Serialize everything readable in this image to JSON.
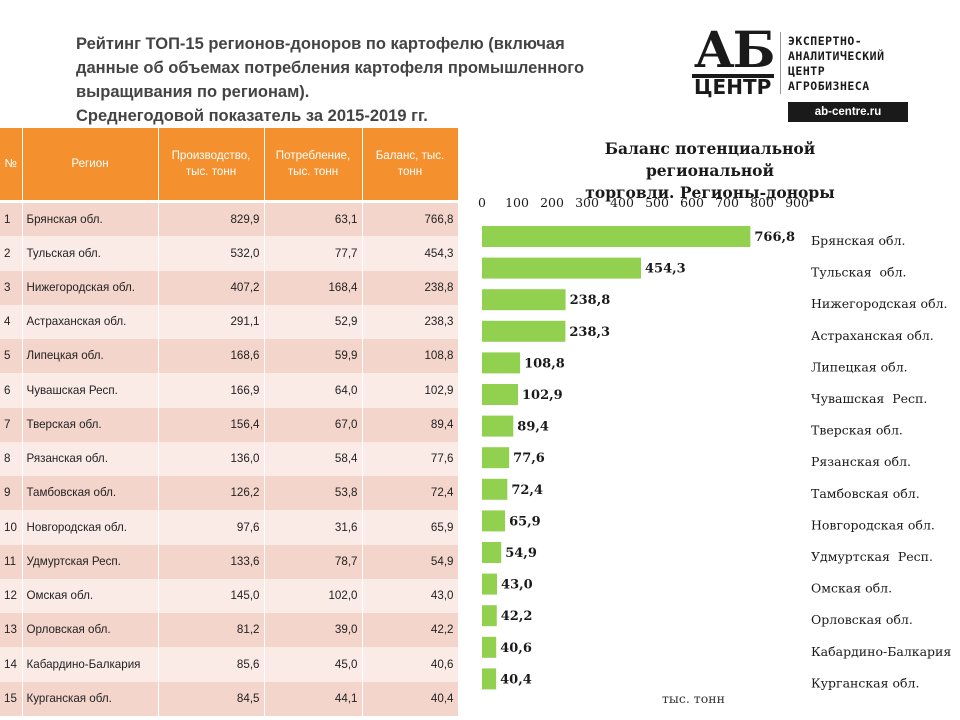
{
  "title": {
    "lines": [
      "Рейтинг ТОП-15 регионов-доноров по картофелю (включая",
      "данные об объемах потребления картофеля промышленного",
      "выращивания по регионам).",
      "Среднегодовой показатель за 2015-2019 гг."
    ]
  },
  "logo": {
    "mark_top": "АБ",
    "mark_bottom": "ЦЕНТР",
    "text_lines": [
      "ЭКСПЕРТНО-",
      "АНАЛИТИЧЕСКИЙ",
      "ЦЕНТР",
      "АГРОБИЗНЕСА"
    ],
    "url": "ab-centre.ru"
  },
  "table": {
    "headers": {
      "num": "№",
      "region": "Регион",
      "production": "Производство, тыс. тонн",
      "consumption": "Потребление, тыс. тонн",
      "balance": "Баланс, тыс. тонн"
    },
    "rows": [
      {
        "n": "1",
        "region": "Брянская обл.",
        "production": "829,9",
        "consumption": "63,1",
        "balance": "766,8"
      },
      {
        "n": "2",
        "region": "Тульская обл.",
        "production": "532,0",
        "consumption": "77,7",
        "balance": "454,3"
      },
      {
        "n": "3",
        "region": "Нижегородская обл.",
        "production": "407,2",
        "consumption": "168,4",
        "balance": "238,8"
      },
      {
        "n": "4",
        "region": "Астраханская обл.",
        "production": "291,1",
        "consumption": "52,9",
        "balance": "238,3"
      },
      {
        "n": "5",
        "region": "Липецкая обл.",
        "production": "168,6",
        "consumption": "59,9",
        "balance": "108,8"
      },
      {
        "n": "6",
        "region": "Чувашская Респ.",
        "production": "166,9",
        "consumption": "64,0",
        "balance": "102,9"
      },
      {
        "n": "7",
        "region": "Тверская обл.",
        "production": "156,4",
        "consumption": "67,0",
        "balance": "89,4"
      },
      {
        "n": "8",
        "region": "Рязанская обл.",
        "production": "136,0",
        "consumption": "58,4",
        "balance": "77,6"
      },
      {
        "n": "9",
        "region": "Тамбовская обл.",
        "production": "126,2",
        "consumption": "53,8",
        "balance": "72,4"
      },
      {
        "n": "10",
        "region": "Новгородская обл.",
        "production": "97,6",
        "consumption": "31,6",
        "balance": "65,9"
      },
      {
        "n": "11",
        "region": "Удмуртская Респ.",
        "production": "133,6",
        "consumption": "78,7",
        "balance": "54,9"
      },
      {
        "n": "12",
        "region": "Омская обл.",
        "production": "145,0",
        "consumption": "102,0",
        "balance": "43,0"
      },
      {
        "n": "13",
        "region": "Орловская обл.",
        "production": "81,2",
        "consumption": "39,0",
        "balance": "42,2"
      },
      {
        "n": "14",
        "region": "Кабардино-Балкария",
        "production": "85,6",
        "consumption": "45,0",
        "balance": "40,6"
      },
      {
        "n": "15",
        "region": "Курганская обл.",
        "production": "84,5",
        "consumption": "44,1",
        "balance": "40,4"
      }
    ]
  },
  "chart_data": {
    "type": "bar",
    "orientation": "horizontal",
    "title": "Баланс потенциальной региональной торговли. Регионы-доноры",
    "title_lines": [
      "Баланс потенциальной региональной",
      "торговли. Регионы-доноры"
    ],
    "categories": [
      "Брянская обл.",
      "Тульская  обл.",
      "Нижегородская обл.",
      "Астраханская обл.",
      "Липецкая обл.",
      "Чувашская  Респ.",
      "Тверская обл.",
      "Рязанская обл.",
      "Тамбовская обл.",
      "Новгородская обл.",
      "Удмуртская  Респ.",
      "Омская обл.",
      "Орловская обл.",
      "Кабардино-Балкария",
      "Курганская обл."
    ],
    "values": [
      766.8,
      454.3,
      238.8,
      238.3,
      108.8,
      102.9,
      89.4,
      77.6,
      72.4,
      65.9,
      54.9,
      43.0,
      42.2,
      40.6,
      40.4
    ],
    "value_labels": [
      "766,8",
      "454,3",
      "238,8",
      "238,3",
      "108,8",
      "102,9",
      "89,4",
      "77,6",
      "72,4",
      "65,9",
      "54,9",
      "43,0",
      "42,2",
      "40,6",
      "40,4"
    ],
    "xlim": [
      0,
      900
    ],
    "x_ticks": [
      0,
      100,
      200,
      300,
      400,
      500,
      600,
      700,
      800,
      900
    ],
    "x_axis_position": "top",
    "category_labels_position": "right",
    "xlabel": "тыс. тонн",
    "bar_color": "#92d050",
    "grid": false
  }
}
